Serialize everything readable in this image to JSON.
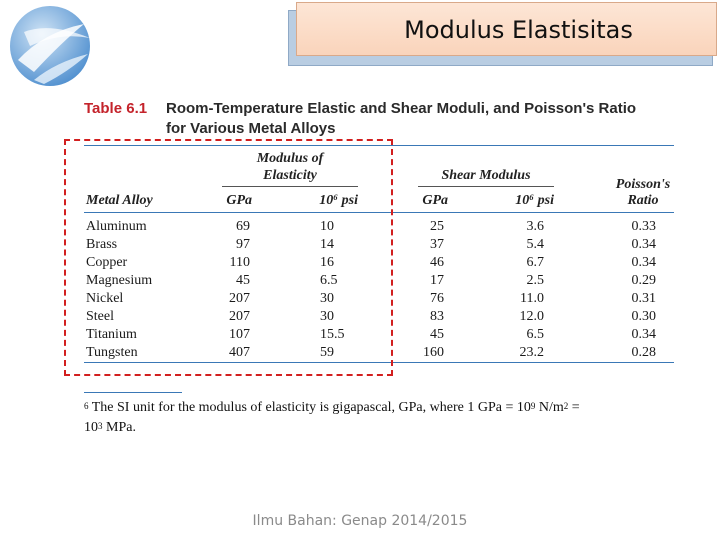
{
  "header": {
    "title": "Modulus Elastisitas"
  },
  "table": {
    "number": "Table 6.1",
    "caption_line1": "Room-Temperature Elastic and Shear Moduli, and Poisson's Ratio",
    "caption_line2": "for Various Metal Alloys",
    "group_elasticity": [
      "Modulus of",
      "Elasticity"
    ],
    "group_shear": "Shear Modulus",
    "col_alloy": "Metal Alloy",
    "col_gpa": "GPa",
    "col_psi": "10⁶ psi",
    "col_poisson": [
      "Poisson's",
      "Ratio"
    ],
    "rows": [
      {
        "alloy": "Aluminum",
        "e_gpa": "69",
        "e_psi": "10",
        "g_gpa": "25",
        "g_psi": "3.6",
        "nu": "0.33"
      },
      {
        "alloy": "Brass",
        "e_gpa": "97",
        "e_psi": "14",
        "g_gpa": "37",
        "g_psi": "5.4",
        "nu": "0.34"
      },
      {
        "alloy": "Copper",
        "e_gpa": "110",
        "e_psi": "16",
        "g_gpa": "46",
        "g_psi": "6.7",
        "nu": "0.34"
      },
      {
        "alloy": "Magnesium",
        "e_gpa": "45",
        "e_psi": "6.5",
        "g_gpa": "17",
        "g_psi": "2.5",
        "nu": "0.29"
      },
      {
        "alloy": "Nickel",
        "e_gpa": "207",
        "e_psi": "30",
        "g_gpa": "76",
        "g_psi": "11.0",
        "nu": "0.31"
      },
      {
        "alloy": "Steel",
        "e_gpa": "207",
        "e_psi": "30",
        "g_gpa": "83",
        "g_psi": "12.0",
        "nu": "0.30"
      },
      {
        "alloy": "Titanium",
        "e_gpa": "107",
        "e_psi": "15.5",
        "g_gpa": "45",
        "g_psi": "6.5",
        "nu": "0.34"
      },
      {
        "alloy": "Tungsten",
        "e_gpa": "407",
        "e_psi": "59",
        "g_gpa": "160",
        "g_psi": "23.2",
        "nu": "0.28"
      }
    ]
  },
  "footnote": {
    "marker": "6",
    "text_a": " The SI unit for the modulus of elasticity is gigapascal, GPa, where 1 GPa = 10",
    "exp1": "9",
    "text_b": " N/m",
    "exp2": "2",
    "text_c": " =",
    "text_d": "10",
    "exp3": "3",
    "text_e": " MPa."
  },
  "footer": {
    "text": "Ilmu Bahan: Genap 2014/2015"
  },
  "colors": {
    "highlight": "#d21f1f",
    "caption_number": "#c4232b",
    "rule": "#3a78b6"
  }
}
